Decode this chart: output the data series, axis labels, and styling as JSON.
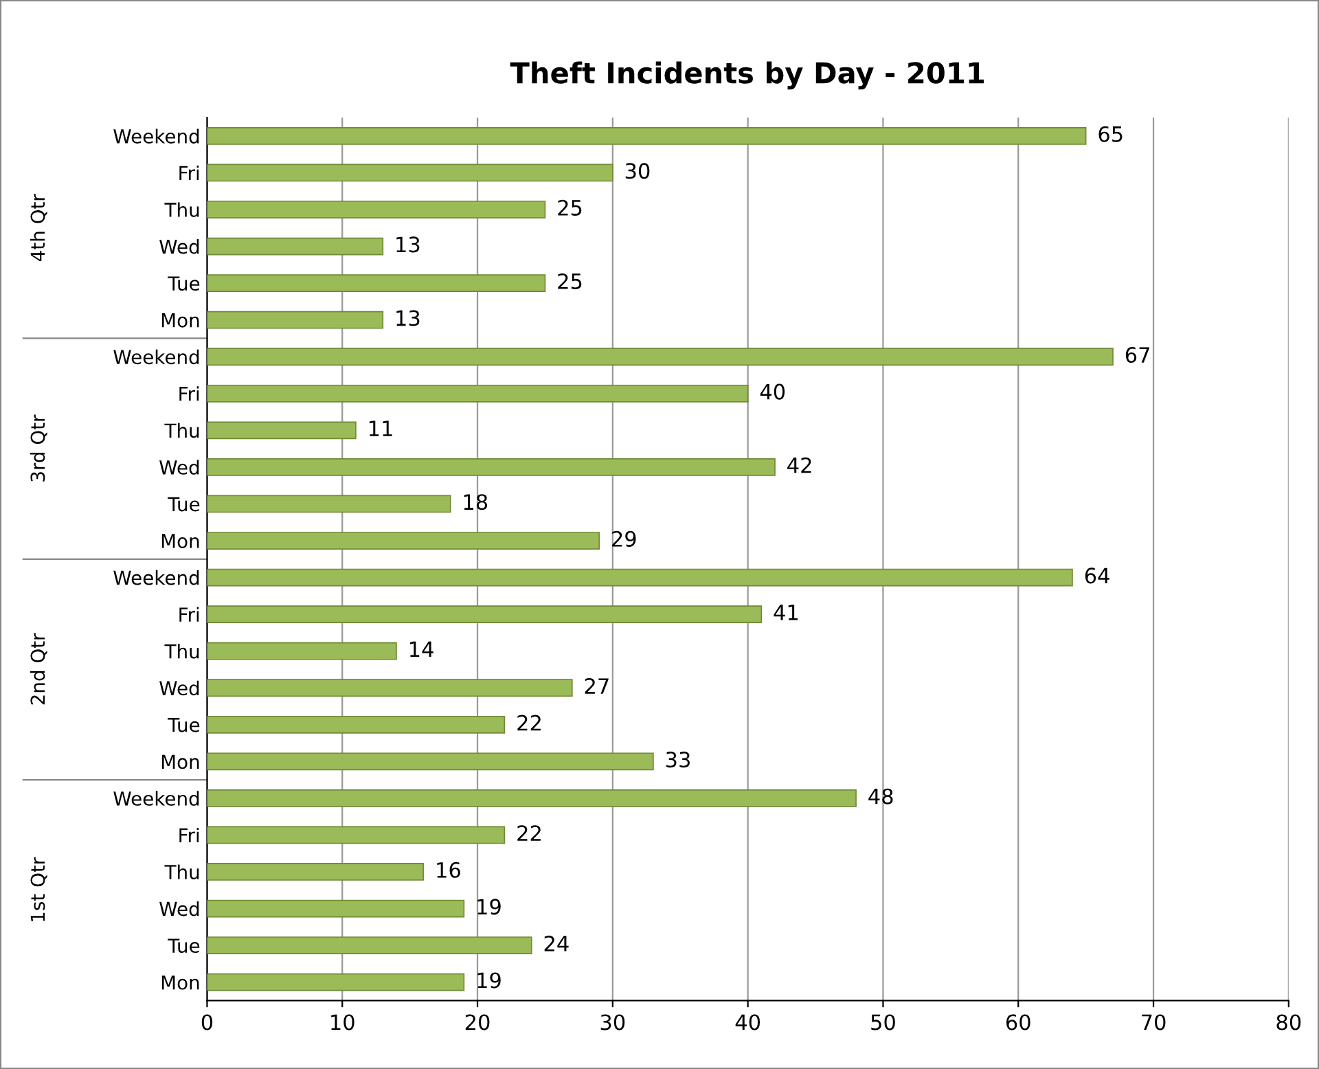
{
  "chart_data": {
    "type": "bar",
    "orientation": "horizontal",
    "title": "Theft Incidents by Day - 2011",
    "categories": [
      "Weekend",
      "Fri",
      "Thu",
      "Wed",
      "Tue",
      "Mon",
      "Weekend",
      "Fri",
      "Thu",
      "Wed",
      "Tue",
      "Mon",
      "Weekend",
      "Fri",
      "Thu",
      "Wed",
      "Tue",
      "Mon",
      "Weekend",
      "Fri",
      "Thu",
      "Wed",
      "Tue",
      "Mon"
    ],
    "values": [
      65,
      30,
      25,
      13,
      25,
      13,
      67,
      40,
      11,
      42,
      18,
      29,
      64,
      41,
      14,
      27,
      22,
      33,
      48,
      22,
      16,
      19,
      24,
      19
    ],
    "color": "#9bbb59",
    "annotations": [
      "4th Qtr",
      "3rd Qtr",
      "2nd Qtr",
      "1st Qtr"
    ],
    "xlim": [
      0,
      80
    ],
    "xticks": [
      0,
      10,
      20,
      30,
      40,
      50,
      60,
      70,
      80
    ],
    "grid": "x",
    "data_labels": true
  }
}
